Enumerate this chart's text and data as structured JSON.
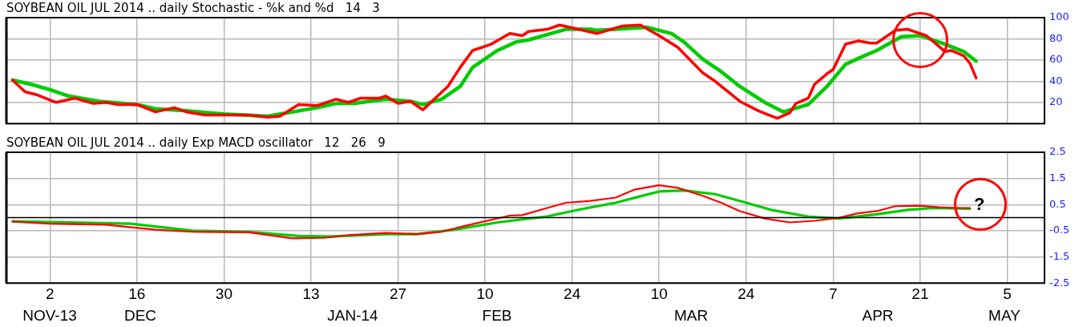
{
  "chart_data": [
    {
      "type": "line",
      "title": "SOYBEAN OIL JUL 2014 .. daily Stochastic - %k and %d   14   3",
      "marker": "none",
      "grid": true,
      "tick_labels": "y",
      "xlim": [
        "2013-11-25",
        "2014-05-11"
      ],
      "xticks": [
        {
          "value": "2013-12-02",
          "label": null
        },
        {
          "value": "2013-12-16",
          "label": null
        },
        {
          "value": "2013-12-30",
          "label": null
        },
        {
          "value": "2014-01-13",
          "label": null
        },
        {
          "value": "2014-01-27",
          "label": null
        },
        {
          "value": "2014-02-10",
          "label": null
        },
        {
          "value": "2014-02-24",
          "label": null
        },
        {
          "value": "2014-03-10",
          "label": null
        },
        {
          "value": "2014-03-24",
          "label": null
        },
        {
          "value": "2014-04-07",
          "label": null
        },
        {
          "value": "2014-04-21",
          "label": null
        },
        {
          "value": "2014-05-05",
          "label": null
        }
      ],
      "ylim": [
        0,
        100
      ],
      "yticks": [
        20,
        40,
        60,
        80,
        100
      ],
      "series": [
        {
          "color": "#ff0000",
          "x": [
            "2013-11-26",
            "2013-11-28",
            "2013-11-30",
            "2013-12-03",
            "2013-12-06",
            "2013-12-09",
            "2013-12-11",
            "2013-12-13",
            "2013-12-16",
            "2013-12-19",
            "2013-12-22",
            "2013-12-24",
            "2013-12-27",
            "2013-12-30",
            "2014-01-03",
            "2014-01-06",
            "2014-01-08",
            "2014-01-11",
            "2014-01-14",
            "2014-01-17",
            "2014-01-19",
            "2014-01-21",
            "2014-01-24",
            "2014-01-25",
            "2014-01-27",
            "2014-01-29",
            "2014-01-31",
            "2014-02-02",
            "2014-02-04",
            "2014-02-06",
            "2014-02-08",
            "2014-02-11",
            "2014-02-14",
            "2014-02-16",
            "2014-02-17",
            "2014-02-20",
            "2014-02-22",
            "2014-02-25",
            "2014-02-28",
            "2014-03-04",
            "2014-03-07",
            "2014-03-10",
            "2014-03-13",
            "2014-03-17",
            "2014-03-19",
            "2014-03-23",
            "2014-03-26",
            "2014-03-29",
            "2014-03-31",
            "2014-04-01",
            "2014-04-03",
            "2014-04-04",
            "2014-04-06",
            "2014-04-07",
            "2014-04-09",
            "2014-04-11",
            "2014-04-13",
            "2014-04-14",
            "2014-04-17",
            "2014-04-19",
            "2014-04-22",
            "2014-04-25",
            "2014-04-26",
            "2014-04-28",
            "2014-04-29",
            "2014-04-30"
          ],
          "values": [
            41,
            30,
            27,
            20,
            24,
            19,
            20,
            18,
            18,
            11,
            15,
            11,
            8,
            8,
            8,
            6,
            7,
            18,
            17,
            23,
            20,
            24,
            24,
            26,
            19,
            21,
            13,
            24,
            35,
            53,
            69,
            75,
            85,
            83,
            87,
            89,
            93,
            89,
            85,
            92,
            93,
            83,
            72,
            48,
            40,
            21,
            12,
            5,
            10,
            19,
            24,
            37,
            47,
            51,
            75,
            78,
            76,
            76,
            88,
            89,
            83,
            68,
            69,
            64,
            57,
            43
          ]
        },
        {
          "color": "#00cc00",
          "x": [
            "2013-11-26",
            "2013-11-29",
            "2013-12-02",
            "2013-12-05",
            "2013-12-07",
            "2013-12-10",
            "2013-12-16",
            "2013-12-19",
            "2013-12-24",
            "2013-12-30",
            "2014-01-06",
            "2014-01-09",
            "2014-01-14",
            "2014-01-17",
            "2014-01-20",
            "2014-01-25",
            "2014-01-29",
            "2014-01-31",
            "2014-02-03",
            "2014-02-06",
            "2014-02-08",
            "2014-02-12",
            "2014-02-15",
            "2014-02-17",
            "2014-02-20",
            "2014-02-23",
            "2014-02-27",
            "2014-02-28",
            "2014-03-03",
            "2014-03-08",
            "2014-03-12",
            "2014-03-14",
            "2014-03-17",
            "2014-03-20",
            "2014-03-23",
            "2014-03-27",
            "2014-03-30",
            "2014-04-03",
            "2014-04-06",
            "2014-04-09",
            "2014-04-12",
            "2014-04-14",
            "2014-04-18",
            "2014-04-21",
            "2014-04-22",
            "2014-04-25",
            "2014-04-28",
            "2014-04-30"
          ],
          "values": [
            41,
            37,
            32,
            26,
            24,
            21,
            18,
            14,
            12,
            9,
            7,
            10,
            15,
            19,
            19,
            23,
            21,
            18,
            23,
            35,
            53,
            69,
            77,
            79,
            84,
            89,
            89,
            88,
            89,
            91,
            85,
            77,
            61,
            49,
            35,
            20,
            11,
            18,
            35,
            56,
            64,
            69,
            82,
            83,
            81,
            75,
            68,
            59
          ]
        }
      ]
    },
    {
      "type": "line",
      "title": "SOYBEAN OIL JUL 2014 .. daily Exp MACD oscillator   12   26   9",
      "marker": "none",
      "grid": true,
      "xlim": [
        "2013-11-25",
        "2014-05-11"
      ],
      "xticks": [
        {
          "value": "2013-12-02",
          "label": "2"
        },
        {
          "value": "2013-12-16",
          "label": "16"
        },
        {
          "value": "2013-12-30",
          "label": "30"
        },
        {
          "value": "2014-01-13",
          "label": "13"
        },
        {
          "value": "2014-01-27",
          "label": "27"
        },
        {
          "value": "2014-02-10",
          "label": "10"
        },
        {
          "value": "2014-02-24",
          "label": "24"
        },
        {
          "value": "2014-03-10",
          "label": "10"
        },
        {
          "value": "2014-03-24",
          "label": "24"
        },
        {
          "value": "2014-04-07",
          "label": "7"
        },
        {
          "value": "2014-04-21",
          "label": "21"
        },
        {
          "value": "2014-05-05",
          "label": "5"
        }
      ],
      "ylim": [
        -2.5,
        2.5
      ],
      "yticks": [
        -2.5,
        -1.5,
        -0.5,
        0.5,
        1.5,
        2.5
      ],
      "ref_lines": [
        {
          "axis": "y",
          "value": 0,
          "color": "#000000"
        }
      ],
      "annotations": [
        "?",
        "NOV-13",
        "DEC",
        "JAN-14",
        "FEB",
        "MAR",
        "APR",
        "MAY"
      ],
      "series": [
        {
          "color": "#ff0000",
          "x": [
            "2013-11-26",
            "2013-12-02",
            "2013-12-11",
            "2013-12-19",
            "2013-12-25",
            "2014-01-03",
            "2014-01-10",
            "2014-01-15",
            "2014-01-19",
            "2014-01-25",
            "2014-01-30",
            "2014-02-03",
            "2014-02-07",
            "2014-02-14",
            "2014-02-16",
            "2014-02-20",
            "2014-02-23",
            "2014-02-27",
            "2014-03-03",
            "2014-03-06",
            "2014-03-10",
            "2014-03-13",
            "2014-03-17",
            "2014-03-20",
            "2014-03-23",
            "2014-03-27",
            "2014-03-31",
            "2014-04-04",
            "2014-04-08",
            "2014-04-11",
            "2014-04-14",
            "2014-04-17",
            "2014-04-21",
            "2014-04-24",
            "2014-04-27",
            "2014-04-29"
          ],
          "values": [
            -0.15,
            -0.23,
            -0.27,
            -0.46,
            -0.54,
            -0.56,
            -0.79,
            -0.77,
            -0.67,
            -0.58,
            -0.63,
            -0.54,
            -0.3,
            0.08,
            0.1,
            0.37,
            0.57,
            0.64,
            0.77,
            1.07,
            1.24,
            1.14,
            0.84,
            0.57,
            0.25,
            -0.03,
            -0.18,
            -0.12,
            0,
            0.17,
            0.25,
            0.44,
            0.46,
            0.4,
            0.37,
            0.37
          ]
        },
        {
          "color": "#00cc00",
          "x": [
            "2013-11-26",
            "2013-12-15",
            "2013-12-25",
            "2014-01-03",
            "2014-01-11",
            "2014-01-16",
            "2014-01-25",
            "2014-01-30",
            "2014-02-05",
            "2014-02-12",
            "2014-02-20",
            "2014-02-25",
            "2014-03-03",
            "2014-03-08",
            "2014-03-10",
            "2014-03-14",
            "2014-03-19",
            "2014-03-23",
            "2014-03-28",
            "2014-04-03",
            "2014-04-08",
            "2014-04-14",
            "2014-04-19",
            "2014-04-23",
            "2014-04-29"
          ],
          "values": [
            -0.14,
            -0.23,
            -0.5,
            -0.54,
            -0.7,
            -0.72,
            -0.63,
            -0.63,
            -0.46,
            -0.18,
            0.05,
            0.3,
            0.57,
            0.88,
            1.0,
            1.04,
            0.9,
            0.64,
            0.3,
            0.04,
            -0.03,
            0.13,
            0.3,
            0.37,
            0.34
          ]
        }
      ]
    }
  ]
}
